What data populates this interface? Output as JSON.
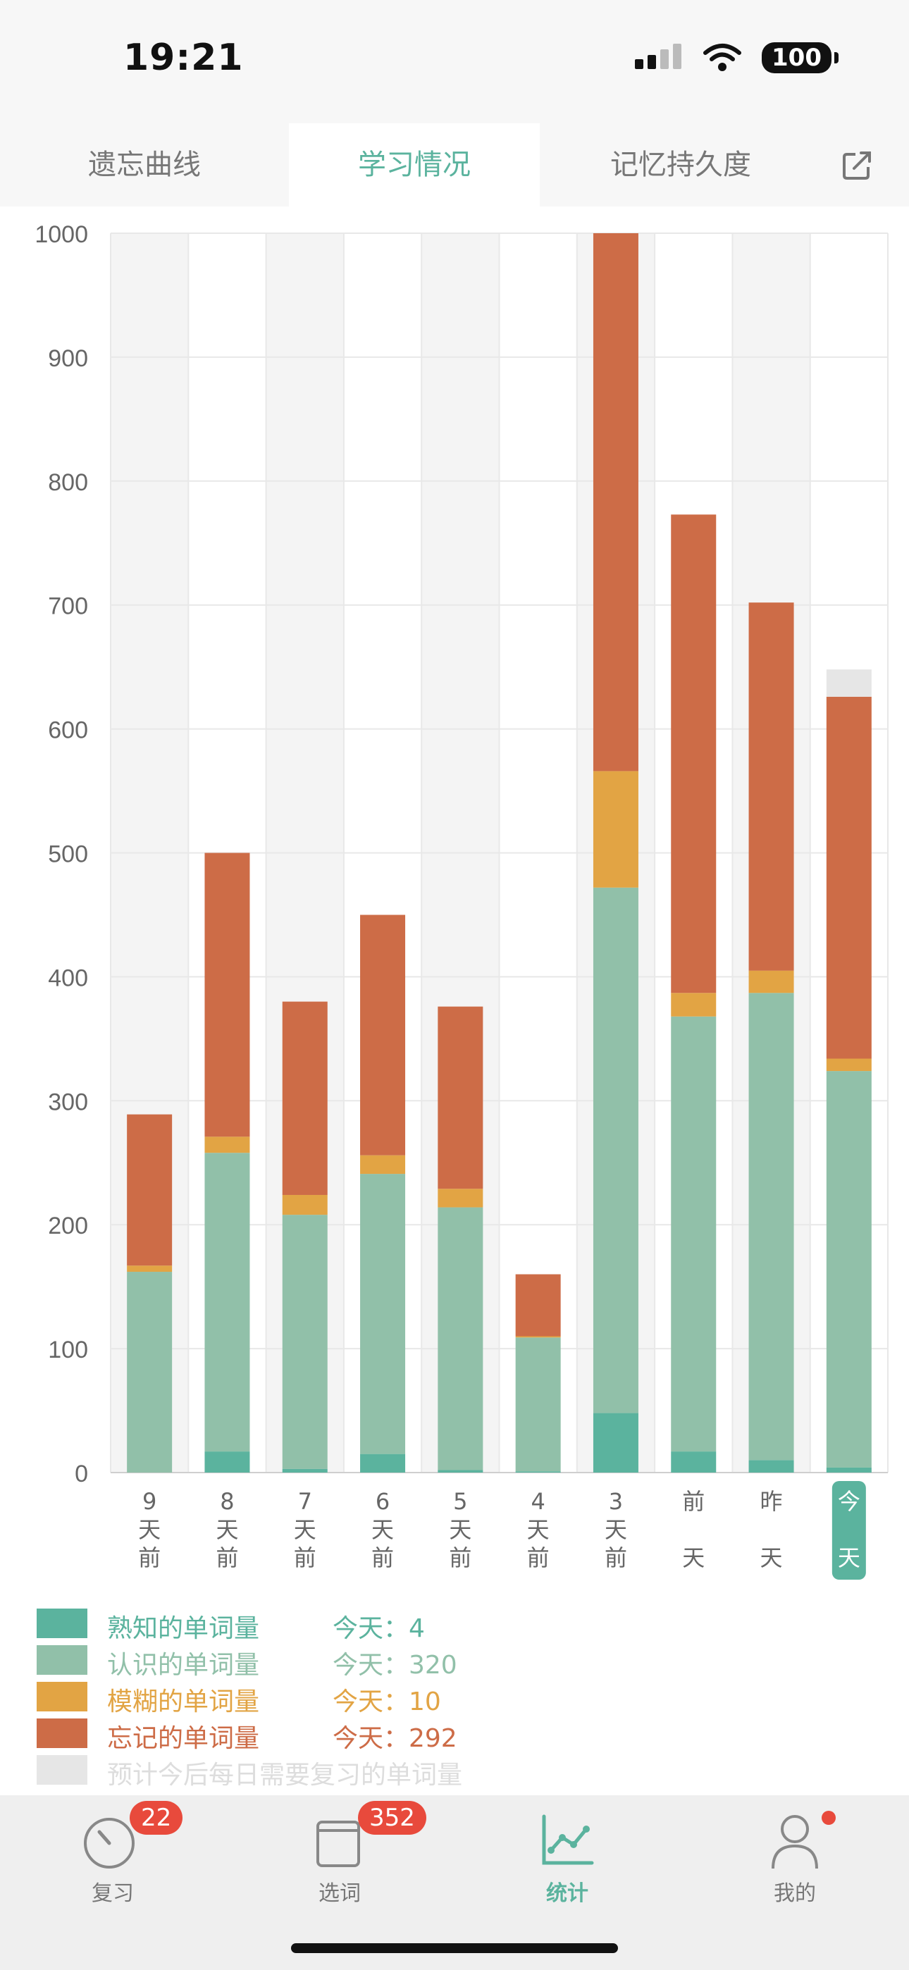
{
  "status_bar": {
    "time": "19:21",
    "battery": "100"
  },
  "tabs": [
    {
      "label": "遗忘曲线",
      "active": false
    },
    {
      "label": "学习情况",
      "active": true
    },
    {
      "label": "记忆持久度",
      "active": false
    }
  ],
  "chart_data": {
    "type": "bar",
    "stacked": true,
    "categories": [
      "9天前",
      "8天前",
      "7天前",
      "6天前",
      "5天前",
      "4天前",
      "3天前",
      "前天",
      "昨天",
      "今天"
    ],
    "category_chars": [
      [
        "9",
        "天",
        "前"
      ],
      [
        "8",
        "天",
        "前"
      ],
      [
        "7",
        "天",
        "前"
      ],
      [
        "6",
        "天",
        "前"
      ],
      [
        "5",
        "天",
        "前"
      ],
      [
        "4",
        "天",
        "前"
      ],
      [
        "3",
        "天",
        "前"
      ],
      [
        "前",
        "",
        "天"
      ],
      [
        "昨",
        "",
        "天"
      ],
      [
        "今",
        "",
        "天"
      ]
    ],
    "series": [
      {
        "name": "熟知的单词量",
        "color": "#5bb39e",
        "values": [
          0,
          17,
          3,
          15,
          2,
          1,
          48,
          17,
          10,
          4
        ]
      },
      {
        "name": "认识的单词量",
        "color": "#91c0a9",
        "values": [
          162,
          241,
          205,
          226,
          212,
          108,
          424,
          351,
          377,
          320
        ]
      },
      {
        "name": "模糊的单词量",
        "color": "#e2a444",
        "values": [
          5,
          13,
          16,
          15,
          15,
          1,
          94,
          19,
          18,
          10
        ]
      },
      {
        "name": "忘记的单词量",
        "color": "#cd6c47",
        "values": [
          122,
          229,
          156,
          194,
          147,
          50,
          434,
          386,
          297,
          292
        ]
      },
      {
        "name": "预计今后每日需要复习的单词量",
        "color": "#e6e6e6",
        "values": [
          0,
          0,
          0,
          0,
          0,
          0,
          0,
          0,
          0,
          22
        ]
      }
    ],
    "yticks": [
      0,
      100,
      200,
      300,
      400,
      500,
      600,
      700,
      800,
      900,
      1000
    ],
    "ylim": [
      0,
      1000
    ],
    "highlighted_category": "今天",
    "grid": true
  },
  "legend": [
    {
      "label": "熟知的单词量",
      "value": "今天：4",
      "color": "#5bb39e"
    },
    {
      "label": "认识的单词量",
      "value": "今天：320",
      "color": "#91c0a9"
    },
    {
      "label": "模糊的单词量",
      "value": "今天：10",
      "color": "#e2a444"
    },
    {
      "label": "忘记的单词量",
      "value": "今天：292",
      "color": "#cd6c47"
    },
    {
      "label": "预计今后每日需要复习的单词量",
      "value": "",
      "color": "#e6e6e6"
    }
  ],
  "bottom_nav": [
    {
      "label": "复习",
      "badge": "22",
      "icon": "gauge-icon"
    },
    {
      "label": "选词",
      "badge": "352",
      "icon": "book-icon"
    },
    {
      "label": "统计",
      "badge": "",
      "icon": "line-chart-icon",
      "active": true
    },
    {
      "label": "我的",
      "badge": "",
      "icon": "person-icon",
      "dot": true
    }
  ],
  "colors": {
    "accent": "#5bb39e",
    "badge": "#e84a3c"
  }
}
